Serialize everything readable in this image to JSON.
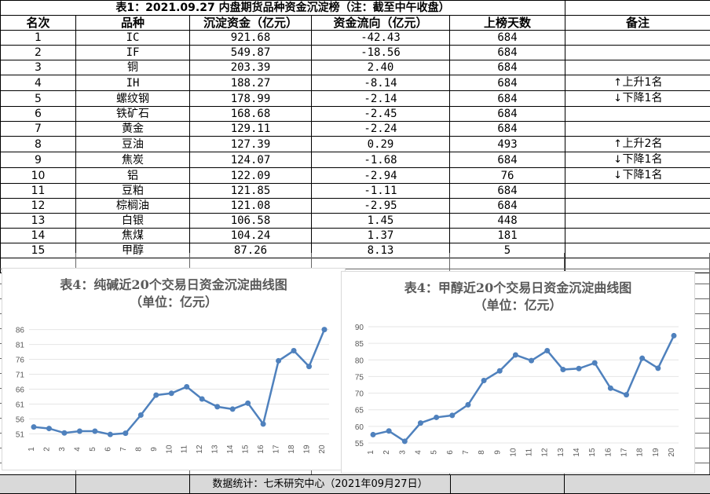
{
  "table": {
    "title": "表1：2021.09.27 内盘期货品种资金沉淀榜（注：截至中午收盘）",
    "headers": [
      "名次",
      "品种",
      "沉淀资金（亿元）",
      "资金流向（亿元）",
      "上榜天数",
      "备注"
    ],
    "rows": [
      {
        "rank": "1",
        "name": "IC",
        "fund": "921.68",
        "flow": "-42.43",
        "days": "684",
        "arrow": "",
        "note": ""
      },
      {
        "rank": "2",
        "name": "IF",
        "fund": "549.87",
        "flow": "-18.56",
        "days": "684",
        "arrow": "",
        "note": ""
      },
      {
        "rank": "3",
        "name": "铜",
        "fund": "203.39",
        "flow": "2.40",
        "days": "684",
        "arrow": "",
        "note": ""
      },
      {
        "rank": "4",
        "name": "IH",
        "fund": "188.27",
        "flow": "-8.14",
        "days": "684",
        "arrow": "↑",
        "note": "上升1名"
      },
      {
        "rank": "5",
        "name": "螺纹钢",
        "fund": "178.99",
        "flow": "-2.14",
        "days": "684",
        "arrow": "↓",
        "note": "下降1名"
      },
      {
        "rank": "6",
        "name": "铁矿石",
        "fund": "168.68",
        "flow": "-2.45",
        "days": "684",
        "arrow": "",
        "note": ""
      },
      {
        "rank": "7",
        "name": "黄金",
        "fund": "129.11",
        "flow": "-2.24",
        "days": "684",
        "arrow": "",
        "note": ""
      },
      {
        "rank": "8",
        "name": "豆油",
        "fund": "127.39",
        "flow": "0.29",
        "days": "493",
        "arrow": "↑",
        "note": "上升2名"
      },
      {
        "rank": "9",
        "name": "焦炭",
        "fund": "124.07",
        "flow": "-1.68",
        "days": "684",
        "arrow": "↓",
        "note": "下降1名"
      },
      {
        "rank": "10",
        "name": "铝",
        "fund": "122.09",
        "flow": "-2.94",
        "days": "76",
        "arrow": "↓",
        "note": "下降1名"
      },
      {
        "rank": "11",
        "name": "豆粕",
        "fund": "121.85",
        "flow": "-1.11",
        "days": "684",
        "arrow": "",
        "note": ""
      },
      {
        "rank": "12",
        "name": "棕榈油",
        "fund": "121.08",
        "flow": "-2.95",
        "days": "684",
        "arrow": "",
        "note": ""
      },
      {
        "rank": "13",
        "name": "白银",
        "fund": "106.58",
        "flow": "1.45",
        "days": "448",
        "arrow": "",
        "note": ""
      },
      {
        "rank": "14",
        "name": "焦煤",
        "fund": "104.24",
        "flow": "1.37",
        "days": "181",
        "arrow": "",
        "note": ""
      },
      {
        "rank": "15",
        "name": "甲醇",
        "fund": "87.26",
        "flow": "8.13",
        "days": "5",
        "arrow": "",
        "note": ""
      }
    ]
  },
  "chart_data": [
    {
      "type": "line",
      "title": "表4：纯碱近20个交易日资金沉淀曲线图",
      "subtitle": "（单位：亿元）",
      "x": [
        "1",
        "2",
        "3",
        "4",
        "5",
        "6",
        "7",
        "8",
        "9",
        "10",
        "11",
        "12",
        "13",
        "14",
        "15",
        "16",
        "17",
        "18",
        "19",
        "20"
      ],
      "series": [
        {
          "values": [
            53.3,
            52.8,
            51.3,
            51.9,
            51.9,
            50.8,
            51.2,
            57.3,
            64.0,
            64.6,
            66.8,
            62.7,
            60.1,
            59.3,
            61.3,
            54.3,
            75.5,
            78.9,
            73.6,
            86.0
          ]
        }
      ],
      "yticks": [
        51,
        56,
        61,
        66,
        71,
        76,
        81,
        86
      ],
      "ylim": [
        49,
        88
      ],
      "color": "#4f81bd"
    },
    {
      "type": "line",
      "title": "表4：甲醇近20个交易日资金沉淀曲线图",
      "subtitle": "（单位：亿元）",
      "x": [
        "1",
        "2",
        "3",
        "4",
        "5",
        "6",
        "7",
        "8",
        "9",
        "10",
        "11",
        "12",
        "13",
        "14",
        "15",
        "16",
        "17",
        "18",
        "19",
        "20"
      ],
      "series": [
        {
          "values": [
            57.5,
            58.6,
            55.5,
            61.0,
            62.7,
            63.3,
            66.5,
            73.8,
            76.7,
            81.5,
            79.8,
            82.8,
            77.1,
            77.4,
            79.1,
            71.5,
            69.5,
            80.5,
            77.5,
            87.3
          ]
        }
      ],
      "yticks": [
        55,
        60,
        65,
        70,
        75,
        80,
        85,
        90
      ],
      "ylim": [
        55,
        90
      ],
      "color": "#4f81bd"
    }
  ],
  "footer": "数据统计：七禾研究中心（2021年09月27日）"
}
